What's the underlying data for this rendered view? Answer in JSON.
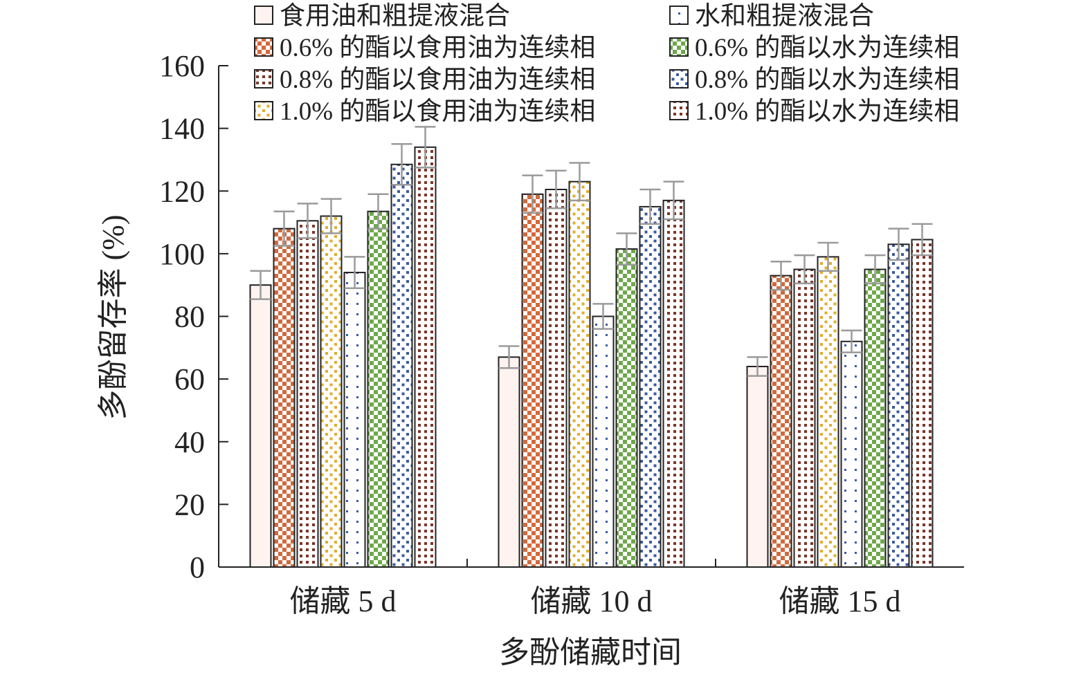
{
  "chart_data": {
    "type": "bar",
    "title": "",
    "xlabel": "多酚储藏时间",
    "ylabel": "多酚留存率 (%)",
    "ylim": [
      0,
      160
    ],
    "yticks": [
      0,
      20,
      40,
      60,
      80,
      100,
      120,
      140,
      160
    ],
    "categories": [
      "储藏 5 d",
      "储藏 10 d",
      "储藏 15 d"
    ],
    "legend_position": "top",
    "grid": false,
    "series": [
      {
        "name": "食用油和粗提液混合",
        "fill": "#fff3f0",
        "pattern": "none",
        "dot": "",
        "values": [
          90,
          67,
          64
        ],
        "errors": [
          4.5,
          3.5,
          3
        ]
      },
      {
        "name": "0.6% 的酯以食用油为连续相",
        "fill": "#ffffff",
        "pattern": "checker",
        "dot": "#d2693c",
        "values": [
          108,
          119,
          93
        ],
        "errors": [
          5.5,
          6,
          4.5
        ]
      },
      {
        "name": "0.8% 的酯以食用油为连续相",
        "fill": "#ffffff",
        "pattern": "grid",
        "dot": "#7a3528",
        "values": [
          110.5,
          120.5,
          95
        ],
        "errors": [
          5.5,
          6,
          4.5
        ]
      },
      {
        "name": "1.0% 的酯以食用油为连续相",
        "fill": "#ffffff",
        "pattern": "dots",
        "dot": "#e0ad2c",
        "values": [
          112,
          123,
          99
        ],
        "errors": [
          5.5,
          6,
          4.5
        ]
      },
      {
        "name": "水和粗提液混合",
        "fill": "#ffffff",
        "pattern": "sparse",
        "dot": "#3a5aa0",
        "values": [
          94,
          80,
          72
        ],
        "errors": [
          5,
          4,
          3.5
        ]
      },
      {
        "name": "0.6% 的酯以水为连续相",
        "fill": "#ffffff",
        "pattern": "checker",
        "dot": "#6ea84a",
        "values": [
          113.5,
          101.5,
          95
        ],
        "errors": [
          5.5,
          5,
          4.5
        ]
      },
      {
        "name": "0.8% 的酯以水为连续相",
        "fill": "#ffffff",
        "pattern": "dots",
        "dot": "#3a5aa0",
        "values": [
          128.5,
          115,
          103
        ],
        "errors": [
          6.5,
          5.5,
          5
        ]
      },
      {
        "name": "1.0% 的酯以水为连续相",
        "fill": "#ffffff",
        "pattern": "grid",
        "dot": "#7a3528",
        "values": [
          134,
          117,
          104.5
        ],
        "errors": [
          6.5,
          6,
          5
        ]
      }
    ]
  },
  "legend_order": [
    0,
    4,
    1,
    5,
    2,
    6,
    3,
    7
  ],
  "colors": {
    "axis": "#222222",
    "bar_outline": "#222222",
    "error_bar": "#9a9a9a",
    "text": "#222222"
  }
}
